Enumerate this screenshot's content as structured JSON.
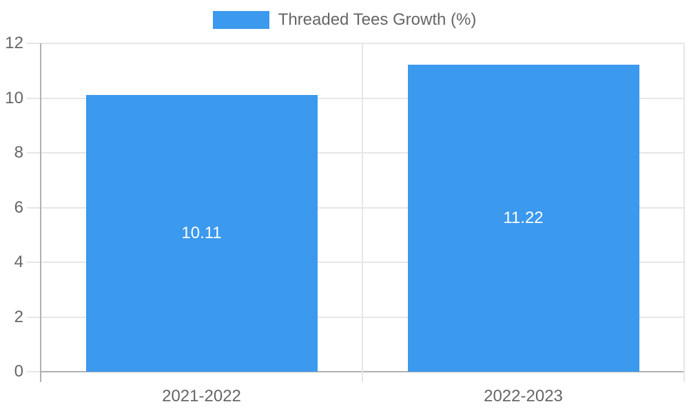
{
  "colors": {
    "bar": "#3B99EE",
    "text": "#666666",
    "grid": "#E6E6E6",
    "axis": "#B0B0B0",
    "data_label": "#FFFFFF",
    "background": "#FFFFFF"
  },
  "chart_data": {
    "type": "bar",
    "title": "",
    "categories": [
      "2021-2022",
      "2022-2023"
    ],
    "series": [
      {
        "name": "Threaded Tees Growth (%)",
        "values": [
          10.11,
          11.22
        ]
      }
    ],
    "data_labels": [
      "10.11",
      "11.22"
    ],
    "ylim": [
      0,
      12
    ],
    "y_ticks": [
      0,
      2,
      4,
      6,
      8,
      10,
      12
    ],
    "xlabel": "",
    "ylabel": "",
    "grid": true,
    "legend_position": "top"
  }
}
